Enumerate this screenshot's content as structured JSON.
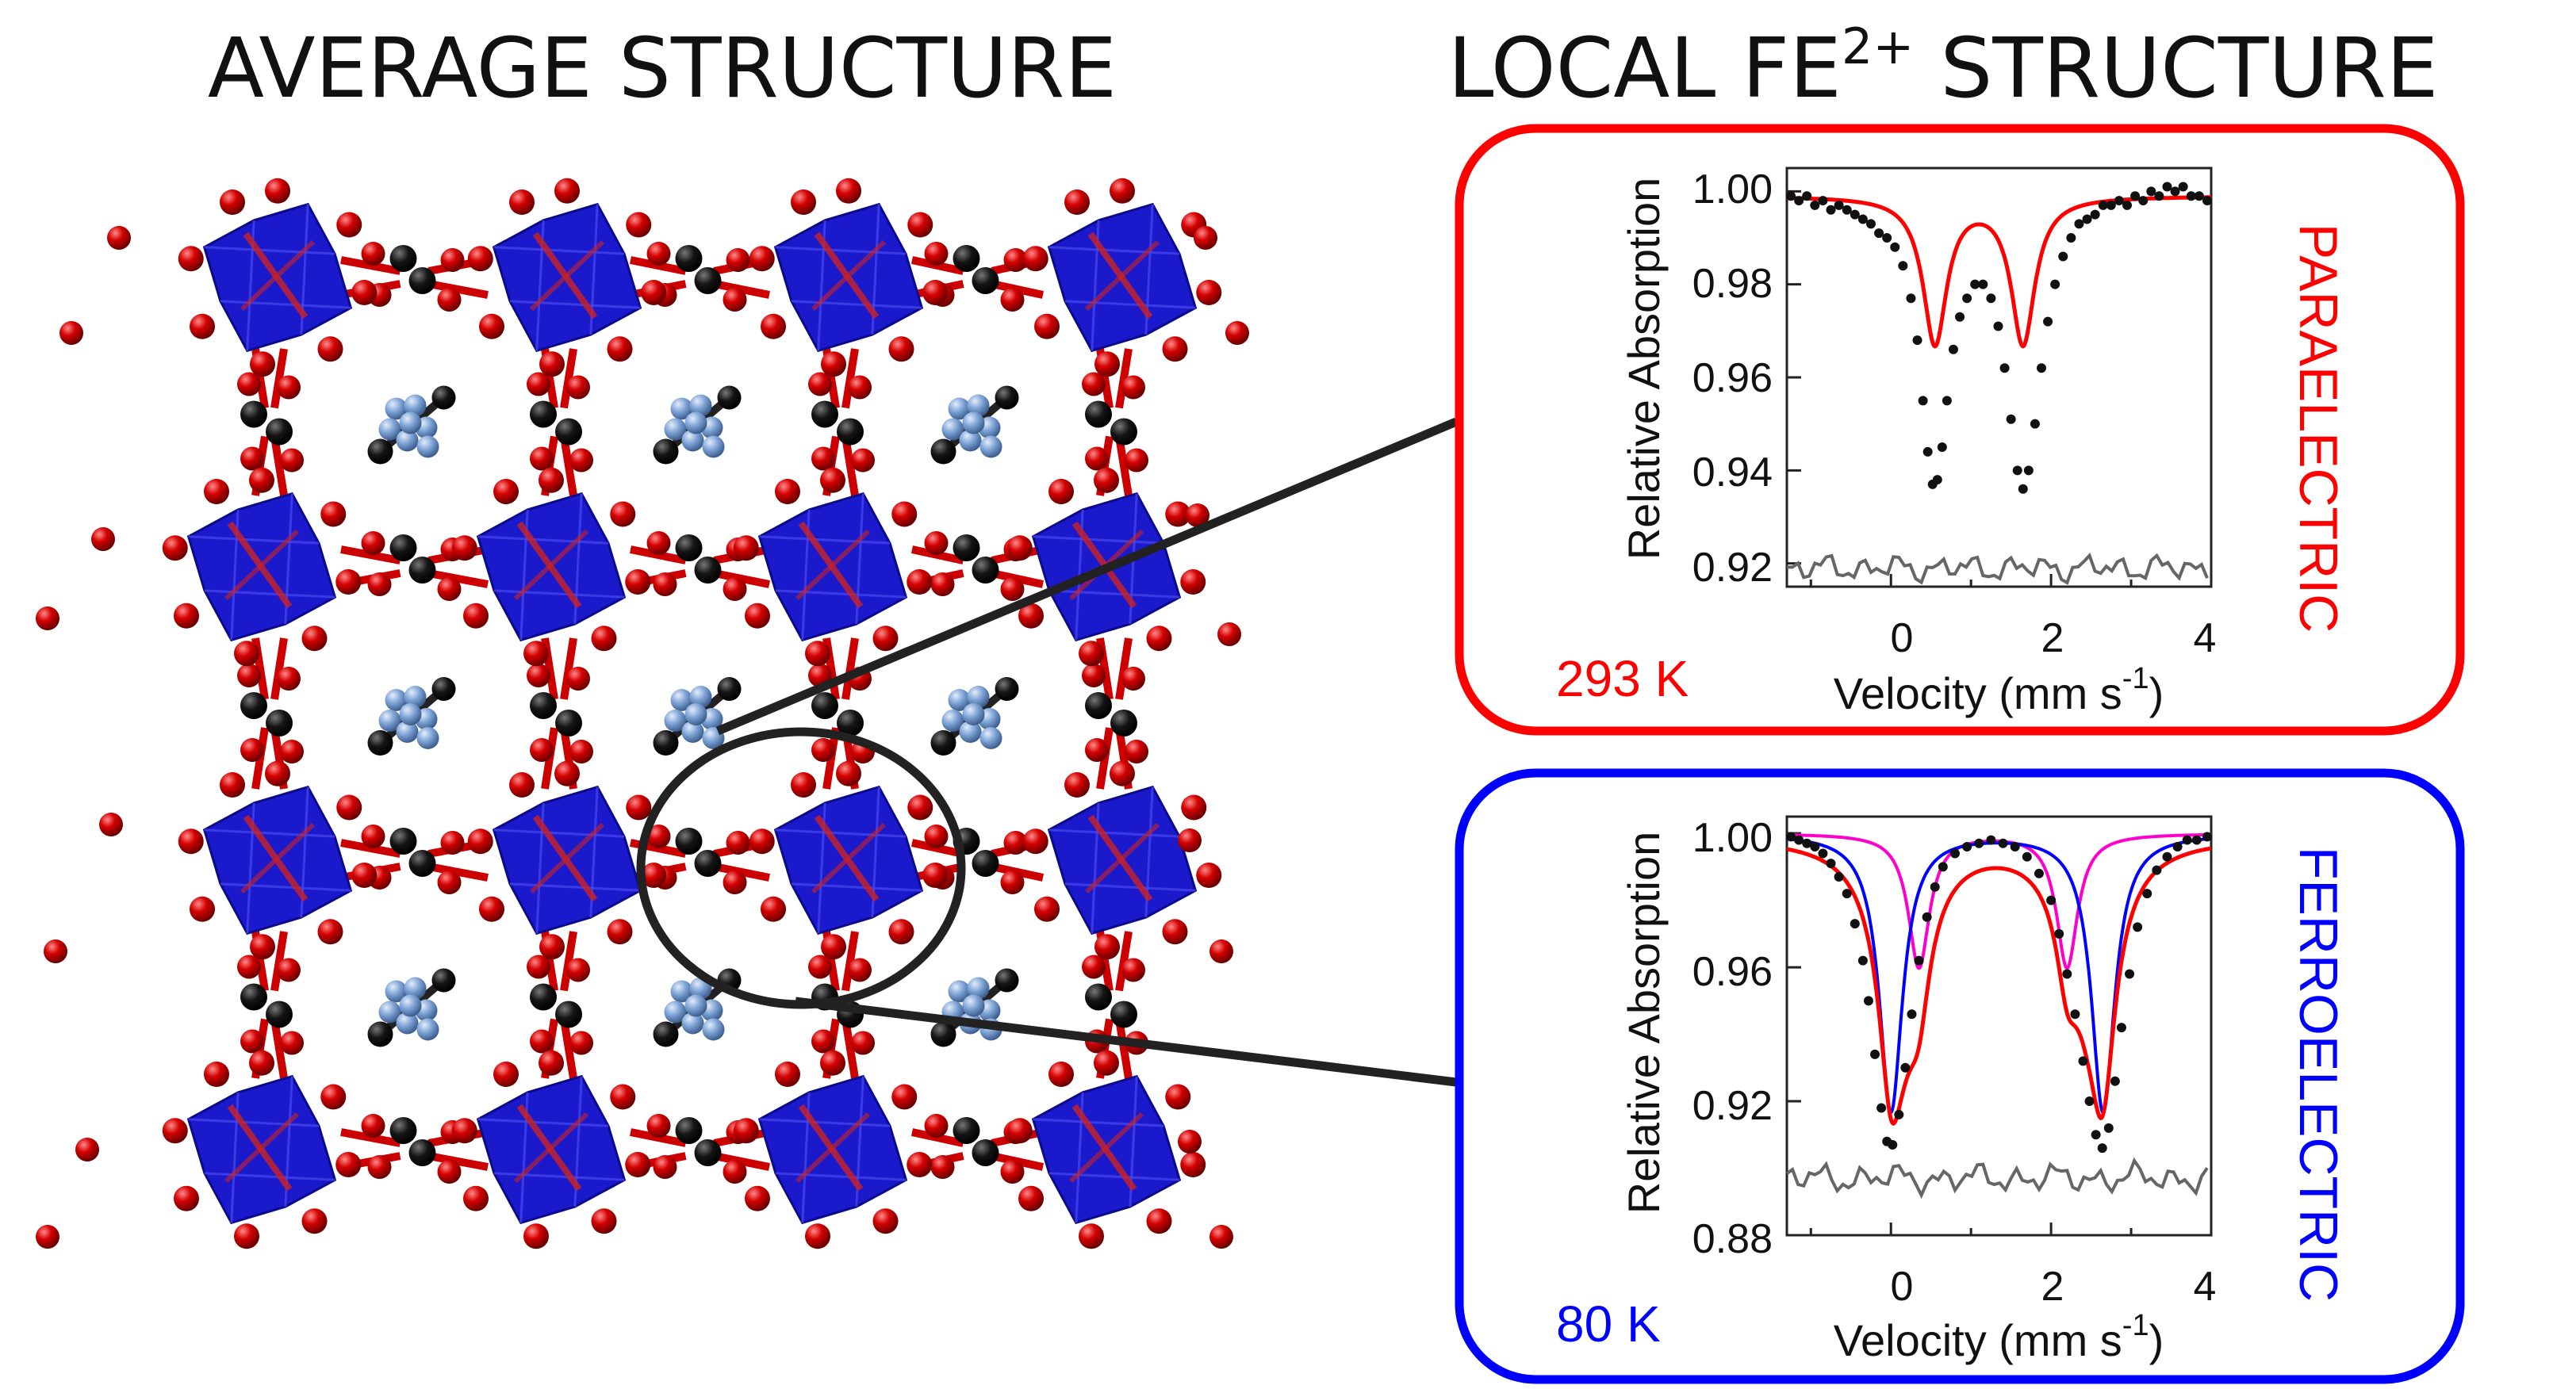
{
  "titles": {
    "average": "AVERAGE STRUCTURE",
    "local_main": "LOCAL FE",
    "local_sup": "2+",
    "local_tail": " STRUCTURE"
  },
  "colors": {
    "paraelectric": "#ff0000",
    "ferroelectric": "#0000ff",
    "fit_pink": "#ff00cc",
    "residual": "#666666",
    "octahedron": "#1a1acc",
    "oxygen": "#d40000",
    "carbon": "#111111",
    "guest": "#7ea3d6"
  },
  "panels": {
    "para": {
      "temperature": "293 K",
      "phase": "PARAELECTRIC",
      "ylabel": "Relative Absorption",
      "xlabel_main": "Velocity (mm s",
      "xlabel_sup": "-1",
      "xlabel_close": ")",
      "yticks": [
        "1.00",
        "0.98",
        "0.96",
        "0.94",
        "0.92"
      ],
      "xticks": [
        "0",
        "2",
        "4"
      ]
    },
    "ferro": {
      "temperature": "80 K",
      "phase": "FERROELECTRIC",
      "ylabel": "Relative Absorption",
      "xlabel_main": "Velocity (mm s",
      "xlabel_sup": "-1",
      "xlabel_close": ")",
      "yticks": [
        "1.00",
        "0.96",
        "0.92",
        "0.88"
      ],
      "xticks": [
        "0",
        "2",
        "4"
      ]
    }
  },
  "chart_data": [
    {
      "type": "line",
      "panel": "paraelectric 293 K",
      "xlabel": "Velocity (mm s-1)",
      "ylabel": "Relative Absorption",
      "xlim": [
        -1.3,
        4.0
      ],
      "ylim": [
        0.915,
        1.005
      ],
      "grid": false,
      "fit": {
        "center_1": 0.55,
        "center_2": 1.65,
        "depth": 0.0315,
        "half_width": 0.18
      },
      "residual_level": 0.919,
      "points": [
        [
          -1.25,
          0.999
        ],
        [
          -1.15,
          0.998
        ],
        [
          -1.05,
          0.999
        ],
        [
          -0.95,
          0.997
        ],
        [
          -0.85,
          0.998
        ],
        [
          -0.75,
          0.996
        ],
        [
          -0.65,
          0.997
        ],
        [
          -0.55,
          0.996
        ],
        [
          -0.45,
          0.995
        ],
        [
          -0.35,
          0.994
        ],
        [
          -0.25,
          0.993
        ],
        [
          -0.15,
          0.991
        ],
        [
          -0.05,
          0.99
        ],
        [
          0.05,
          0.988
        ],
        [
          0.15,
          0.984
        ],
        [
          0.25,
          0.977
        ],
        [
          0.33,
          0.968
        ],
        [
          0.4,
          0.955
        ],
        [
          0.46,
          0.944
        ],
        [
          0.52,
          0.937
        ],
        [
          0.58,
          0.938
        ],
        [
          0.64,
          0.945
        ],
        [
          0.7,
          0.955
        ],
        [
          0.78,
          0.966
        ],
        [
          0.86,
          0.973
        ],
        [
          0.95,
          0.977
        ],
        [
          1.05,
          0.98
        ],
        [
          1.15,
          0.98
        ],
        [
          1.25,
          0.977
        ],
        [
          1.34,
          0.971
        ],
        [
          1.42,
          0.962
        ],
        [
          1.5,
          0.951
        ],
        [
          1.58,
          0.94
        ],
        [
          1.65,
          0.936
        ],
        [
          1.72,
          0.94
        ],
        [
          1.8,
          0.95
        ],
        [
          1.88,
          0.962
        ],
        [
          1.96,
          0.972
        ],
        [
          2.05,
          0.98
        ],
        [
          2.15,
          0.986
        ],
        [
          2.25,
          0.99
        ],
        [
          2.35,
          0.993
        ],
        [
          2.45,
          0.994
        ],
        [
          2.55,
          0.995
        ],
        [
          2.65,
          0.997
        ],
        [
          2.75,
          0.997
        ],
        [
          2.85,
          0.998
        ],
        [
          2.95,
          0.997
        ],
        [
          3.05,
          0.999
        ],
        [
          3.15,
          0.998
        ],
        [
          3.25,
          1.0
        ],
        [
          3.35,
          0.999
        ],
        [
          3.45,
          1.001
        ],
        [
          3.55,
          1.0
        ],
        [
          3.65,
          1.001
        ],
        [
          3.75,
          0.999
        ],
        [
          3.85,
          0.999
        ],
        [
          3.95,
          0.998
        ]
      ]
    },
    {
      "type": "line",
      "panel": "ferroelectric 80 K",
      "xlabel": "Velocity (mm s-1)",
      "ylabel": "Relative Absorption",
      "xlim": [
        -1.3,
        4.0
      ],
      "ylim": [
        0.88,
        1.005
      ],
      "grid": false,
      "fits": {
        "blue_centers": [
          0.0,
          2.65
        ],
        "blue_depth": 0.083,
        "pink_centers": [
          0.35,
          2.2
        ],
        "pink_depth": 0.04,
        "half_width": 0.16
      },
      "residual_level": 0.897,
      "points": [
        [
          -1.25,
          0.999
        ],
        [
          -1.15,
          0.998
        ],
        [
          -1.05,
          0.997
        ],
        [
          -0.95,
          0.996
        ],
        [
          -0.85,
          0.994
        ],
        [
          -0.75,
          0.991
        ],
        [
          -0.65,
          0.987
        ],
        [
          -0.55,
          0.982
        ],
        [
          -0.45,
          0.973
        ],
        [
          -0.35,
          0.962
        ],
        [
          -0.28,
          0.95
        ],
        [
          -0.2,
          0.934
        ],
        [
          -0.12,
          0.918
        ],
        [
          -0.05,
          0.908
        ],
        [
          0.02,
          0.907
        ],
        [
          0.1,
          0.916
        ],
        [
          0.18,
          0.93
        ],
        [
          0.26,
          0.946
        ],
        [
          0.35,
          0.962
        ],
        [
          0.45,
          0.975
        ],
        [
          0.55,
          0.984
        ],
        [
          0.65,
          0.99
        ],
        [
          0.8,
          0.994
        ],
        [
          0.95,
          0.996
        ],
        [
          1.1,
          0.997
        ],
        [
          1.25,
          0.998
        ],
        [
          1.4,
          0.997
        ],
        [
          1.55,
          0.996
        ],
        [
          1.7,
          0.993
        ],
        [
          1.85,
          0.988
        ],
        [
          2.0,
          0.98
        ],
        [
          2.1,
          0.97
        ],
        [
          2.2,
          0.958
        ],
        [
          2.3,
          0.946
        ],
        [
          2.4,
          0.932
        ],
        [
          2.48,
          0.92
        ],
        [
          2.56,
          0.91
        ],
        [
          2.64,
          0.906
        ],
        [
          2.72,
          0.912
        ],
        [
          2.8,
          0.926
        ],
        [
          2.88,
          0.942
        ],
        [
          2.98,
          0.958
        ],
        [
          3.08,
          0.972
        ],
        [
          3.2,
          0.982
        ],
        [
          3.32,
          0.989
        ],
        [
          3.45,
          0.993
        ],
        [
          3.58,
          0.996
        ],
        [
          3.7,
          0.998
        ],
        [
          3.82,
          0.998
        ],
        [
          3.95,
          0.999
        ]
      ]
    }
  ]
}
